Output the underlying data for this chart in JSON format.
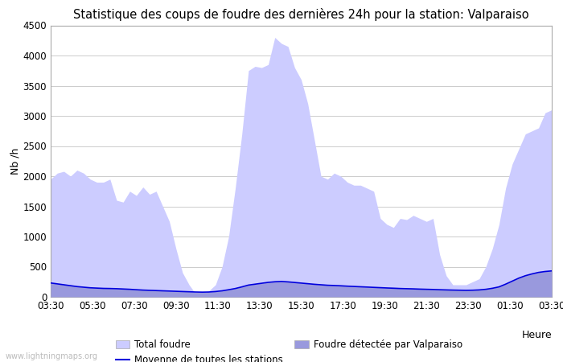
{
  "title": "Statistique des coups de foudre des dernières 24h pour la station: Valparaiso",
  "ylabel": "Nb /h",
  "xlabel": "Heure",
  "watermark": "www.lightningmaps.org",
  "ylim": [
    0,
    4500
  ],
  "yticks": [
    0,
    500,
    1000,
    1500,
    2000,
    2500,
    3000,
    3500,
    4000,
    4500
  ],
  "xtick_labels": [
    "03:30",
    "05:30",
    "07:30",
    "09:30",
    "11:30",
    "13:30",
    "15:30",
    "17:30",
    "19:30",
    "21:30",
    "23:30",
    "01:30",
    "03:30"
  ],
  "bg_color": "#ffffff",
  "plot_bg_color": "#ffffff",
  "grid_color": "#cccccc",
  "fill_total_color": "#ccccff",
  "fill_valparaiso_color": "#9999dd",
  "line_color": "#0000dd",
  "title_fontsize": 10.5,
  "axis_fontsize": 9,
  "tick_fontsize": 8.5,
  "legend_fontsize": 8.5,
  "total_foudre": [
    1950,
    2050,
    2080,
    2000,
    2100,
    2050,
    1950,
    1900,
    1900,
    1950,
    1600,
    1570,
    1750,
    1680,
    1820,
    1700,
    1750,
    1500,
    1250,
    800,
    400,
    200,
    50,
    50,
    100,
    200,
    500,
    1000,
    1800,
    2700,
    3750,
    3820,
    3800,
    3850,
    4300,
    4200,
    4150,
    3800,
    3600,
    3200,
    2600,
    2000,
    1950,
    2050,
    2000,
    1900,
    1850,
    1850,
    1800,
    1750,
    1300,
    1200,
    1150,
    1300,
    1280,
    1350,
    1300,
    1250,
    1300,
    700,
    350,
    200,
    200,
    200,
    250,
    300,
    500,
    800,
    1200,
    1800,
    2200,
    2450,
    2700,
    2750,
    2800,
    3050,
    3100
  ],
  "valparaiso_line": [
    230,
    215,
    200,
    185,
    170,
    160,
    150,
    145,
    140,
    138,
    135,
    130,
    125,
    118,
    112,
    108,
    104,
    100,
    96,
    92,
    88,
    84,
    80,
    78,
    80,
    88,
    100,
    118,
    138,
    165,
    195,
    210,
    225,
    240,
    250,
    255,
    248,
    238,
    228,
    218,
    208,
    200,
    192,
    188,
    183,
    177,
    172,
    167,
    162,
    157,
    152,
    147,
    143,
    138,
    135,
    132,
    128,
    125,
    122,
    118,
    115,
    112,
    110,
    108,
    110,
    115,
    125,
    142,
    165,
    210,
    260,
    310,
    350,
    380,
    405,
    420,
    430
  ],
  "mean_line": [
    230,
    215,
    200,
    185,
    170,
    160,
    150,
    145,
    140,
    138,
    135,
    130,
    125,
    118,
    112,
    108,
    104,
    100,
    96,
    92,
    88,
    84,
    80,
    78,
    80,
    88,
    100,
    118,
    138,
    165,
    195,
    210,
    225,
    240,
    250,
    255,
    248,
    238,
    228,
    218,
    208,
    200,
    192,
    188,
    183,
    177,
    172,
    167,
    162,
    157,
    152,
    147,
    143,
    138,
    135,
    132,
    128,
    125,
    122,
    118,
    115,
    112,
    110,
    108,
    110,
    115,
    125,
    142,
    165,
    210,
    260,
    310,
    350,
    380,
    405,
    420,
    430
  ]
}
